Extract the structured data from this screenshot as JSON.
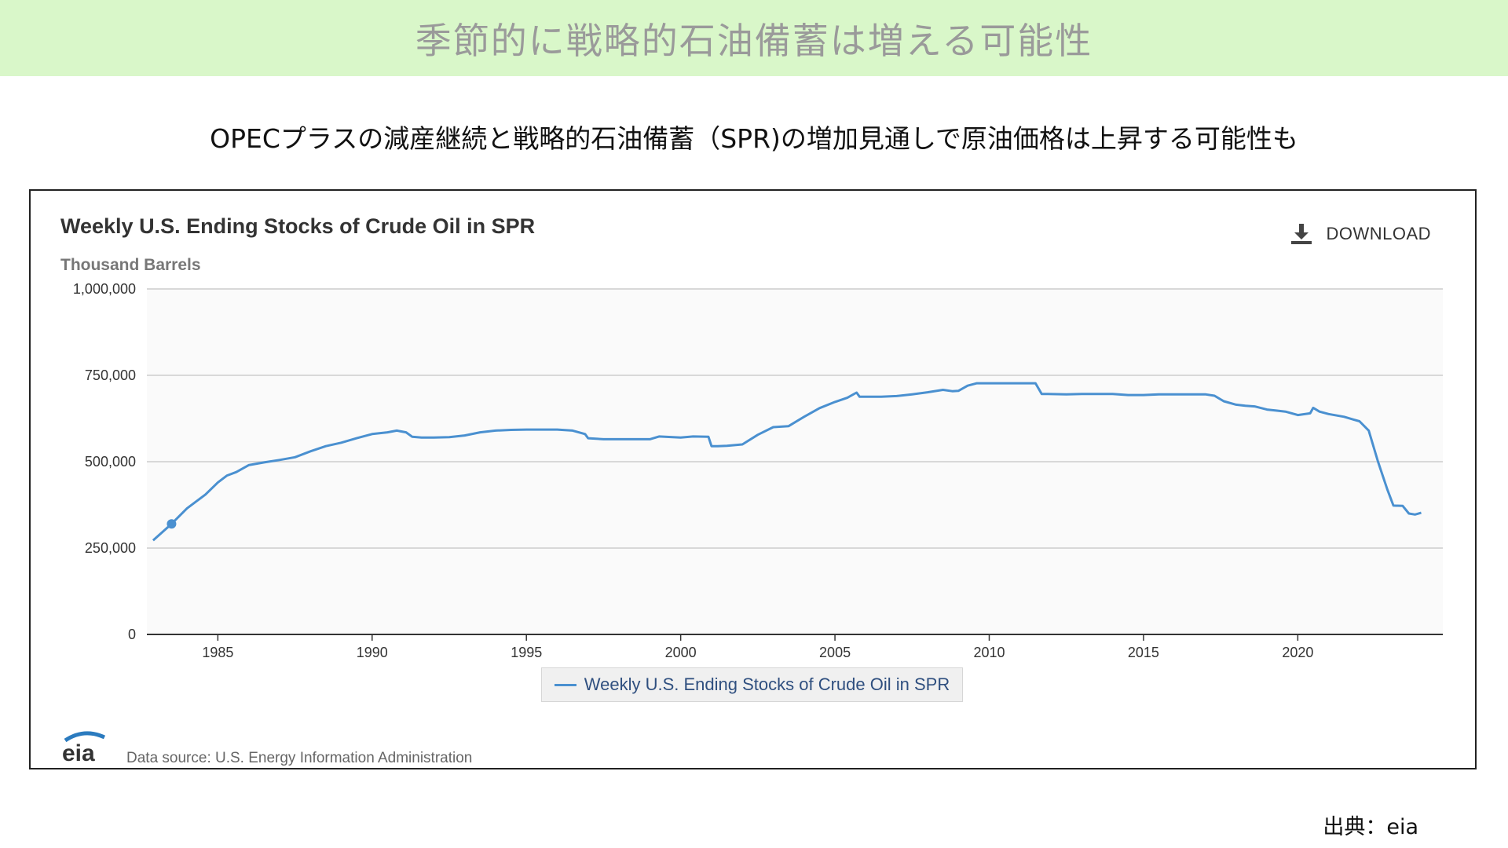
{
  "banner": {
    "title": "季節的に戦略的石油備蓄は増える可能性"
  },
  "subtitle": "OPECプラスの減産継続と戦略的石油備蓄（SPR)の増加見通しで原油価格は上昇する可能性も",
  "chart": {
    "download_label": "DOWNLOAD",
    "source_text": "Data source: U.S. Energy Information Administration",
    "logo_text": "eia"
  },
  "credit": "出典：eia",
  "chart_data": {
    "type": "line",
    "title": "Weekly U.S. Ending Stocks of Crude Oil in SPR",
    "ylabel": "Thousand Barrels",
    "xlabel": "",
    "ylim": [
      0,
      1000000
    ],
    "xlim": [
      1982.7,
      2024.7
    ],
    "y_ticks": [
      0,
      250000,
      500000,
      750000,
      1000000
    ],
    "y_tick_labels": [
      "0",
      "250,000",
      "500,000",
      "750,000",
      "1,000,000"
    ],
    "x_ticks": [
      1985,
      1990,
      1995,
      2000,
      2005,
      2010,
      2015,
      2020
    ],
    "x_tick_labels": [
      "1985",
      "1990",
      "1995",
      "2000",
      "2005",
      "2010",
      "2015",
      "2020"
    ],
    "grid": true,
    "legend_position": "bottom",
    "colors": {
      "series": "#4a90d0",
      "grid": "#cccccc",
      "plot_bg": "#fafafa"
    },
    "highlighted_point": {
      "x": 1983.5,
      "y": 320000
    },
    "series": [
      {
        "name": "Weekly U.S. Ending Stocks of Crude Oil in SPR",
        "x": [
          1982.9,
          1983.5,
          1984.0,
          1984.3,
          1984.6,
          1985.0,
          1985.3,
          1985.6,
          1986.0,
          1986.5,
          1987.0,
          1987.5,
          1988.0,
          1988.5,
          1989.0,
          1989.5,
          1990.0,
          1990.5,
          1990.8,
          1991.1,
          1991.3,
          1991.6,
          1992.0,
          1992.5,
          1993.0,
          1993.5,
          1994.0,
          1994.5,
          1995.0,
          1996.0,
          1996.5,
          1996.9,
          1997.0,
          1997.5,
          1998.0,
          1999.0,
          1999.3,
          2000.0,
          2000.4,
          2000.9,
          2001.0,
          2001.2,
          2001.5,
          2002.0,
          2002.5,
          2003.0,
          2003.5,
          2004.0,
          2004.5,
          2005.0,
          2005.4,
          2005.7,
          2005.8,
          2006.0,
          2006.5,
          2007.0,
          2007.5,
          2008.0,
          2008.5,
          2008.8,
          2009.0,
          2009.3,
          2009.6,
          2010.0,
          2010.5,
          2011.0,
          2011.5,
          2011.7,
          2011.9,
          2012.5,
          2013.0,
          2014.0,
          2014.5,
          2015.0,
          2015.5,
          2016.0,
          2016.5,
          2017.0,
          2017.3,
          2017.6,
          2018.0,
          2018.3,
          2018.6,
          2019.0,
          2019.3,
          2019.6,
          2020.0,
          2020.4,
          2020.5,
          2020.7,
          2021.0,
          2021.5,
          2021.8,
          2022.0,
          2022.3,
          2022.6,
          2022.9,
          2023.1,
          2023.4,
          2023.6,
          2023.8,
          2024.0
        ],
        "y": [
          272000,
          320000,
          365000,
          385000,
          405000,
          440000,
          460000,
          470000,
          490000,
          498000,
          505000,
          513000,
          530000,
          545000,
          555000,
          568000,
          580000,
          585000,
          590000,
          585000,
          572000,
          570000,
          570000,
          571000,
          576000,
          585000,
          590000,
          592000,
          593000,
          593000,
          590000,
          580000,
          568000,
          565000,
          565000,
          565000,
          573000,
          570000,
          573000,
          572000,
          545000,
          545000,
          546000,
          550000,
          578000,
          600000,
          603000,
          630000,
          655000,
          673000,
          685000,
          700000,
          688000,
          688000,
          688000,
          690000,
          695000,
          701000,
          708000,
          704000,
          705000,
          720000,
          727000,
          727000,
          727000,
          727000,
          727000,
          696000,
          696000,
          695000,
          696000,
          696000,
          693000,
          693000,
          695000,
          695000,
          695000,
          695000,
          691000,
          675000,
          665000,
          662000,
          660000,
          651000,
          648000,
          645000,
          635000,
          640000,
          656000,
          645000,
          638000,
          630000,
          622000,
          617000,
          590000,
          500000,
          420000,
          373000,
          372000,
          350000,
          347000,
          352000
        ]
      }
    ]
  }
}
